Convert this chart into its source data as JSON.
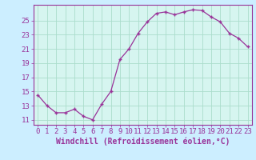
{
  "x": [
    0,
    1,
    2,
    3,
    4,
    5,
    6,
    7,
    8,
    9,
    10,
    11,
    12,
    13,
    14,
    15,
    16,
    17,
    18,
    19,
    20,
    21,
    22,
    23
  ],
  "y": [
    14.5,
    13.0,
    12.0,
    12.0,
    12.5,
    11.5,
    11.0,
    13.2,
    15.0,
    19.5,
    21.0,
    23.2,
    24.8,
    26.0,
    26.2,
    25.8,
    26.2,
    26.5,
    26.4,
    25.5,
    24.8,
    23.2,
    22.5,
    21.3
  ],
  "line_color": "#993399",
  "marker": "+",
  "bg_color": "#cceeff",
  "plot_bg_color": "#d6f5f0",
  "grid_color": "#aaddcc",
  "xlabel": "Windchill (Refroidissement éolien,°C)",
  "yticks": [
    11,
    13,
    15,
    17,
    19,
    21,
    23,
    25
  ],
  "ylim": [
    10.3,
    27.2
  ],
  "xlim": [
    -0.5,
    23.5
  ],
  "xticks": [
    0,
    1,
    2,
    3,
    4,
    5,
    6,
    7,
    8,
    9,
    10,
    11,
    12,
    13,
    14,
    15,
    16,
    17,
    18,
    19,
    20,
    21,
    22,
    23
  ],
  "tick_color": "#993399",
  "xlabel_fontsize": 7.0,
  "tick_fontsize": 6.5,
  "spine_color": "#993399"
}
